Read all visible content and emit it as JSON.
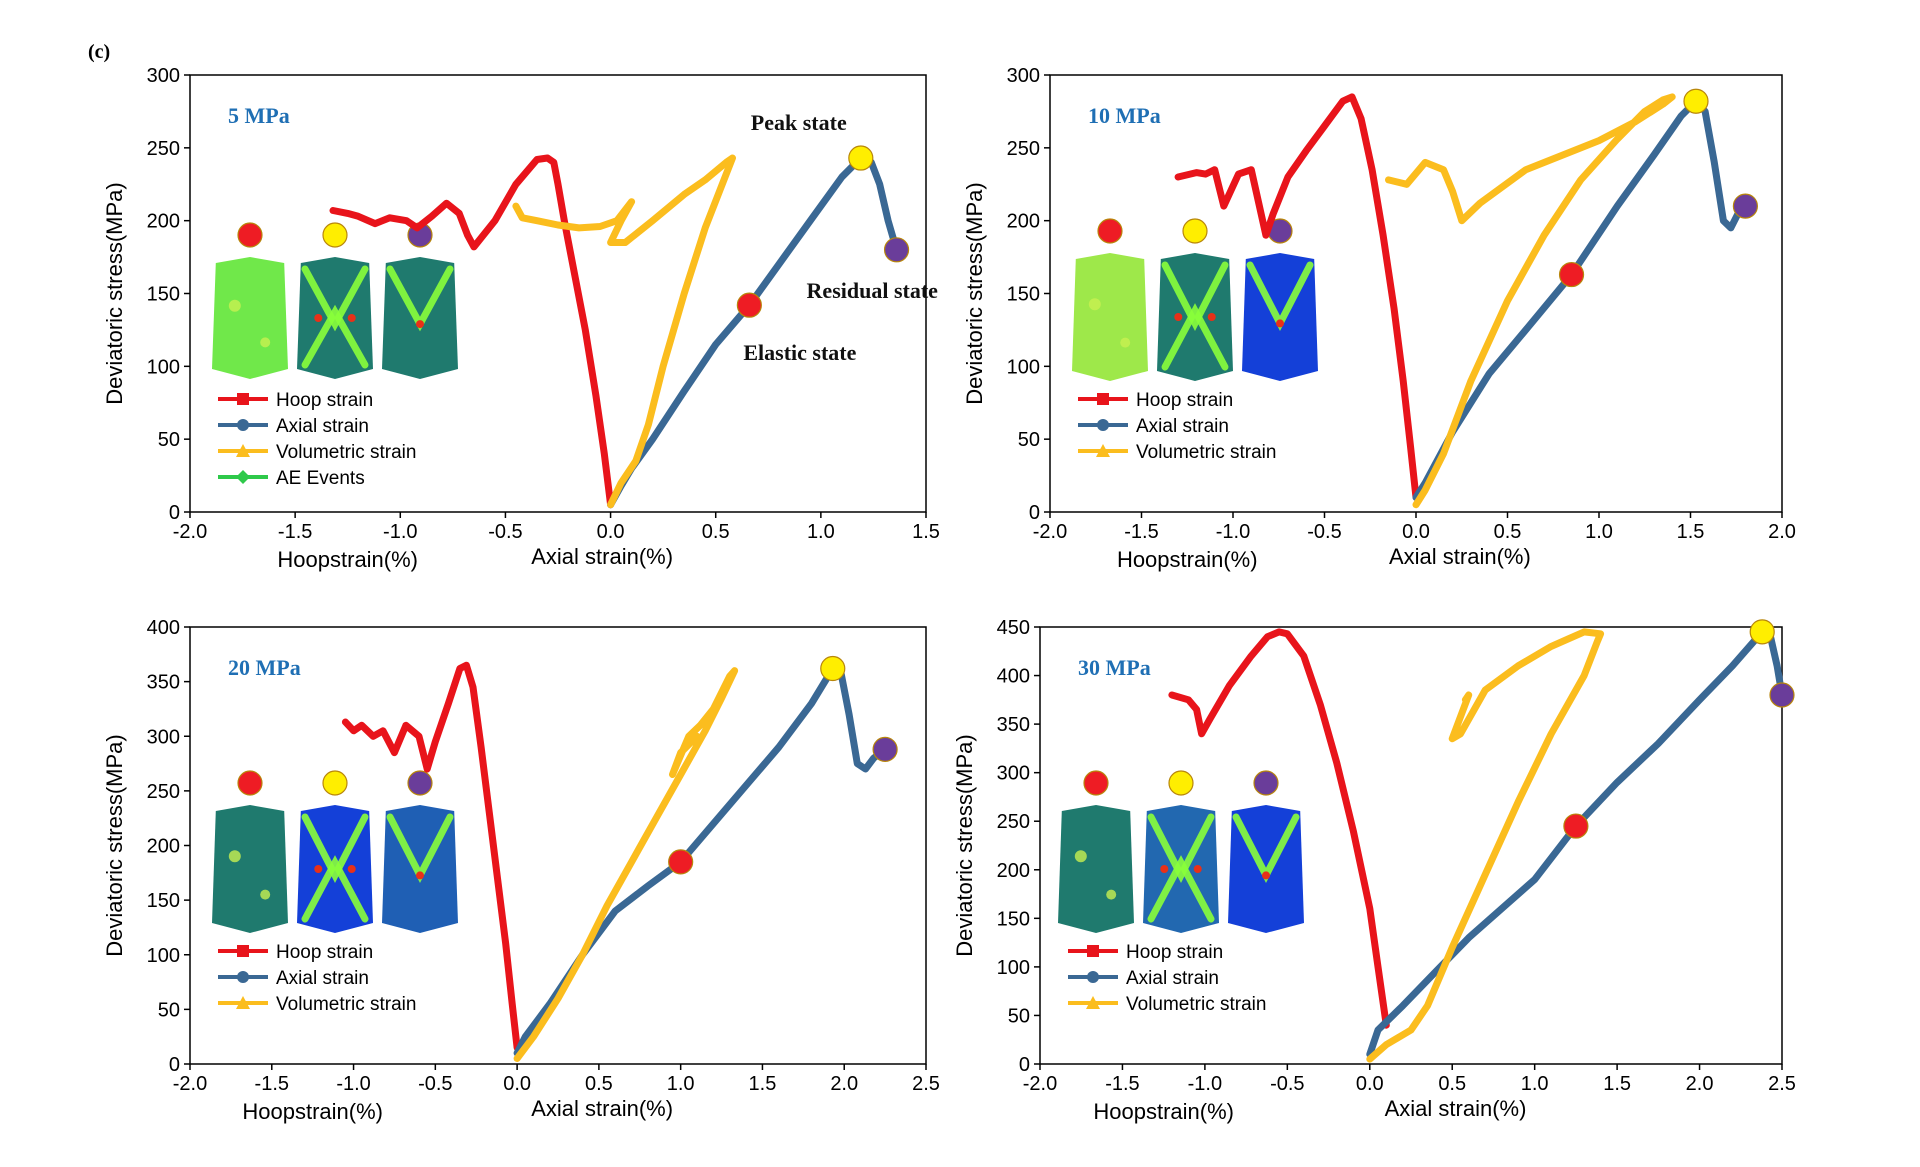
{
  "figure_label": "(c)",
  "colors": {
    "hoop": "#e8141b",
    "axial": "#3a6894",
    "volumetric": "#fbbd1e",
    "ae": "#2ec94a",
    "pressure_label": "#1f6fb4",
    "elastic_marker": "#ee1c24",
    "peak_marker": "#ffee00",
    "residual_marker": "#6a3d9a"
  },
  "chart_data": [
    {
      "type": "line",
      "label": "5 MPa",
      "xlim": [
        -2.0,
        1.5
      ],
      "ylim": [
        0,
        300
      ],
      "xticks": [
        "-2.0",
        "-1.5",
        "-1.0",
        "-0.5",
        "0.0",
        "0.5",
        "1.0",
        "1.5"
      ],
      "yticks": [
        "0",
        "50",
        "100",
        "150",
        "200",
        "250",
        "300"
      ],
      "xlabel_left": "Hoopstrain(%)",
      "xlabel_right": "Axial strain(%)",
      "ylabel": "Deviatoric stress(MPa)",
      "legend": [
        "Hoop strain",
        "Axial strain",
        "Volumetric strain",
        "AE Events"
      ],
      "annotations": [
        "Peak state",
        "Residual state",
        "Elastic state"
      ],
      "series": [
        {
          "name": "Hoop strain",
          "x": [
            0.0,
            -0.03,
            -0.07,
            -0.12,
            -0.18,
            -0.22,
            -0.25,
            -0.27,
            -0.3,
            -0.35,
            -0.45,
            -0.55,
            -0.65,
            -0.68,
            -0.72,
            -0.78,
            -0.85,
            -0.92,
            -0.97,
            -1.05,
            -1.12,
            -1.2,
            -1.25,
            -1.32
          ],
          "y": [
            5,
            40,
            80,
            125,
            170,
            200,
            225,
            240,
            243,
            242,
            225,
            200,
            182,
            190,
            205,
            212,
            203,
            195,
            200,
            202,
            198,
            203,
            205,
            207
          ]
        },
        {
          "name": "Axial strain",
          "x": [
            0.0,
            0.05,
            0.1,
            0.2,
            0.35,
            0.5,
            0.66,
            0.8,
            0.95,
            1.1,
            1.19,
            1.24,
            1.28,
            1.32,
            1.36
          ],
          "y": [
            5,
            18,
            30,
            50,
            83,
            115,
            142,
            170,
            200,
            230,
            243,
            240,
            225,
            200,
            180
          ]
        },
        {
          "name": "Volumetric strain",
          "x": [
            0.0,
            0.05,
            0.12,
            0.18,
            0.25,
            0.35,
            0.45,
            0.55,
            0.58,
            0.55,
            0.45,
            0.35,
            0.2,
            0.07,
            0.0,
            0.05,
            0.1,
            0.03,
            -0.05,
            -0.15,
            -0.25,
            -0.35,
            -0.42,
            -0.45
          ],
          "y": [
            5,
            20,
            35,
            60,
            100,
            150,
            195,
            232,
            243,
            240,
            228,
            218,
            200,
            185,
            185,
            200,
            213,
            200,
            196,
            195,
            197,
            200,
            202,
            210
          ]
        }
      ],
      "markers": {
        "elastic": [
          0.66,
          142
        ],
        "peak": [
          1.19,
          243
        ],
        "residual": [
          1.36,
          180
        ]
      }
    },
    {
      "type": "line",
      "label": "10 MPa",
      "xlim": [
        -2.0,
        2.0
      ],
      "ylim": [
        0,
        300
      ],
      "xticks": [
        "-2.0",
        "-1.5",
        "-1.0",
        "-0.5",
        "0.0",
        "0.5",
        "1.0",
        "1.5",
        "2.0"
      ],
      "yticks": [
        "0",
        "50",
        "100",
        "150",
        "200",
        "250",
        "300"
      ],
      "xlabel_left": "Hoopstrain(%)",
      "xlabel_right": "Axial strain(%)",
      "ylabel": "Deviatoric stress(MPa)",
      "legend": [
        "Hoop strain",
        "Axial strain",
        "Volumetric strain"
      ],
      "series": [
        {
          "name": "Hoop strain",
          "x": [
            0.0,
            -0.03,
            -0.07,
            -0.12,
            -0.18,
            -0.24,
            -0.3,
            -0.35,
            -0.4,
            -0.5,
            -0.6,
            -0.7,
            -0.78,
            -0.82,
            -0.9,
            -0.97,
            -1.05,
            -1.1,
            -1.15,
            -1.2,
            -1.3
          ],
          "y": [
            10,
            45,
            90,
            140,
            190,
            235,
            270,
            285,
            282,
            265,
            248,
            230,
            205,
            190,
            235,
            232,
            210,
            235,
            232,
            233,
            230
          ]
        },
        {
          "name": "Axial strain",
          "x": [
            0.0,
            0.05,
            0.2,
            0.4,
            0.6,
            0.85,
            1.1,
            1.3,
            1.45,
            1.53,
            1.58,
            1.63,
            1.68,
            1.72,
            1.76,
            1.8
          ],
          "y": [
            10,
            20,
            55,
            95,
            125,
            163,
            210,
            245,
            272,
            282,
            275,
            240,
            200,
            195,
            205,
            210
          ]
        },
        {
          "name": "Volumetric strain",
          "x": [
            0.0,
            0.05,
            0.15,
            0.3,
            0.5,
            0.7,
            0.9,
            1.1,
            1.25,
            1.35,
            1.4,
            1.35,
            1.2,
            1.0,
            0.6,
            0.35,
            0.25,
            0.2,
            0.15,
            0.05,
            -0.05,
            -0.15
          ],
          "y": [
            5,
            15,
            40,
            90,
            145,
            190,
            228,
            256,
            275,
            283,
            285,
            280,
            268,
            255,
            235,
            212,
            200,
            220,
            235,
            240,
            225,
            228
          ]
        }
      ],
      "markers": {
        "elastic": [
          0.85,
          163
        ],
        "peak": [
          1.53,
          282
        ],
        "residual": [
          1.8,
          210
        ]
      }
    },
    {
      "type": "line",
      "label": "20 MPa",
      "xlim": [
        -2.0,
        2.5
      ],
      "ylim": [
        0,
        400
      ],
      "xticks": [
        "-2.0",
        "-1.5",
        "-1.0",
        "-0.5",
        "0.0",
        "0.5",
        "1.0",
        "1.5",
        "2.0",
        "2.5"
      ],
      "yticks": [
        "0",
        "50",
        "100",
        "150",
        "200",
        "250",
        "300",
        "350",
        "400"
      ],
      "xlabel_left": "Hoopstrain(%)",
      "xlabel_right": "Axial strain(%)",
      "ylabel": "Deviatoric stress(MPa)",
      "legend": [
        "Hoop strain",
        "Axial strain",
        "Volumetric strain"
      ],
      "series": [
        {
          "name": "Hoop strain",
          "x": [
            0.0,
            -0.03,
            -0.07,
            -0.12,
            -0.17,
            -0.22,
            -0.27,
            -0.31,
            -0.35,
            -0.42,
            -0.5,
            -0.55,
            -0.6,
            -0.68,
            -0.75,
            -0.82,
            -0.88,
            -0.95,
            -1.0,
            -1.05
          ],
          "y": [
            15,
            55,
            110,
            170,
            230,
            290,
            345,
            365,
            362,
            330,
            295,
            270,
            300,
            310,
            285,
            305,
            300,
            310,
            305,
            313
          ]
        },
        {
          "name": "Axial strain",
          "x": [
            0.0,
            0.05,
            0.2,
            0.4,
            0.6,
            0.8,
            1.0,
            1.2,
            1.4,
            1.6,
            1.8,
            1.93,
            1.98,
            2.03,
            2.08,
            2.13,
            2.18,
            2.25
          ],
          "y": [
            10,
            25,
            55,
            100,
            140,
            163,
            185,
            220,
            255,
            290,
            330,
            362,
            358,
            320,
            275,
            270,
            280,
            288
          ]
        },
        {
          "name": "Volumetric strain",
          "x": [
            0.0,
            0.1,
            0.25,
            0.4,
            0.55,
            0.7,
            0.85,
            1.0,
            1.15,
            1.25,
            1.33,
            1.3,
            1.2,
            1.12,
            1.05,
            0.95,
            1.0,
            1.1
          ],
          "y": [
            5,
            25,
            60,
            100,
            145,
            185,
            225,
            265,
            305,
            335,
            360,
            355,
            325,
            310,
            300,
            265,
            285,
            300
          ]
        }
      ],
      "markers": {
        "elastic": [
          1.0,
          185
        ],
        "peak": [
          1.93,
          362
        ],
        "residual": [
          2.25,
          288
        ]
      }
    },
    {
      "type": "line",
      "label": "30 MPa",
      "xlim": [
        -2.0,
        2.5
      ],
      "ylim": [
        0,
        450
      ],
      "xticks": [
        "-2.0",
        "-1.5",
        "-1.0",
        "-0.5",
        "0.0",
        "0.5",
        "1.0",
        "1.5",
        "2.0",
        "2.5"
      ],
      "yticks": [
        "0",
        "50",
        "100",
        "150",
        "200",
        "250",
        "300",
        "350",
        "400",
        "450"
      ],
      "xlabel_left": "Hoopstrain(%)",
      "xlabel_right": "Axial strain(%)",
      "ylabel": "Deviatoric stress(MPa)",
      "legend": [
        "Hoop strain",
        "Axial strain",
        "Volumetric strain"
      ],
      "series": [
        {
          "name": "Hoop strain",
          "x": [
            0.1,
            0.05,
            0.0,
            -0.1,
            -0.2,
            -0.3,
            -0.4,
            -0.5,
            -0.55,
            -0.62,
            -0.72,
            -0.85,
            -0.97,
            -1.02,
            -1.05,
            -1.1,
            -1.2
          ],
          "y": [
            40,
            100,
            160,
            240,
            310,
            370,
            420,
            443,
            445,
            440,
            420,
            390,
            355,
            340,
            365,
            375,
            380
          ]
        },
        {
          "name": "Axial strain",
          "x": [
            0.0,
            0.05,
            0.2,
            0.4,
            0.6,
            0.8,
            1.0,
            1.25,
            1.5,
            1.75,
            2.0,
            2.2,
            2.38,
            2.43,
            2.47,
            2.5
          ],
          "y": [
            10,
            35,
            60,
            95,
            130,
            160,
            190,
            245,
            290,
            330,
            375,
            410,
            445,
            440,
            410,
            380
          ]
        },
        {
          "name": "Volumetric strain",
          "x": [
            0.0,
            0.1,
            0.25,
            0.35,
            0.5,
            0.7,
            0.9,
            1.1,
            1.3,
            1.38,
            1.4,
            1.3,
            1.1,
            0.9,
            0.7,
            0.55,
            0.5,
            0.6,
            0.58
          ],
          "y": [
            5,
            20,
            35,
            60,
            120,
            195,
            270,
            340,
            400,
            435,
            443,
            445,
            430,
            410,
            385,
            340,
            335,
            380,
            375
          ]
        }
      ],
      "markers": {
        "elastic": [
          1.25,
          245
        ],
        "peak": [
          2.38,
          445
        ],
        "residual": [
          2.5,
          380
        ]
      }
    }
  ]
}
